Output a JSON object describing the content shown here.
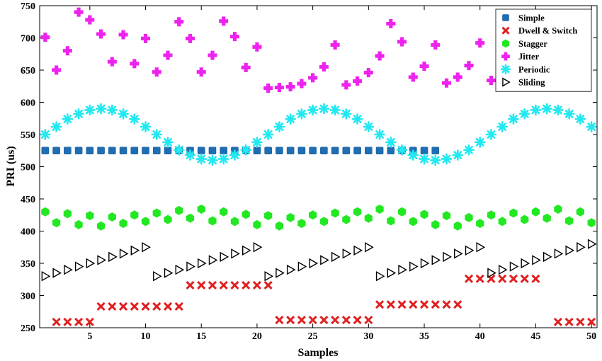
{
  "chart_data": {
    "type": "scatter",
    "xlabel": "Samples",
    "ylabel": "PRI (us)",
    "xlim": [
      0.5,
      50.5
    ],
    "ylim": [
      250,
      750
    ],
    "x_ticks": [
      5,
      10,
      15,
      20,
      25,
      30,
      35,
      40,
      45,
      50
    ],
    "y_ticks": [
      250,
      300,
      350,
      400,
      450,
      500,
      550,
      600,
      650,
      700,
      750
    ],
    "legend_position": "top-right",
    "series": [
      {
        "name": "Simple",
        "marker": "square",
        "color": "#1f6eb4",
        "x": [
          1,
          2,
          3,
          4,
          5,
          6,
          7,
          8,
          9,
          10,
          11,
          12,
          13,
          14,
          15,
          16,
          17,
          18,
          19,
          20,
          21,
          22,
          23,
          24,
          25,
          26,
          27,
          28,
          29,
          30,
          31,
          32,
          33,
          34,
          35,
          36
        ],
        "y": [
          525,
          525,
          525,
          525,
          525,
          525,
          525,
          525,
          525,
          525,
          525,
          525,
          525,
          525,
          525,
          525,
          525,
          525,
          525,
          525,
          525,
          525,
          525,
          525,
          525,
          525,
          525,
          525,
          525,
          525,
          525,
          525,
          525,
          525,
          525,
          525
        ]
      },
      {
        "name": "Dwell & Switch",
        "marker": "x",
        "color": "#e02020",
        "x": [
          2,
          3,
          4,
          5,
          6,
          7,
          8,
          9,
          10,
          11,
          12,
          13,
          14,
          15,
          16,
          17,
          18,
          19,
          20,
          21,
          22,
          23,
          24,
          25,
          26,
          27,
          28,
          29,
          30,
          31,
          32,
          33,
          34,
          35,
          36,
          37,
          38,
          39,
          40,
          41,
          42,
          43,
          44,
          45,
          47,
          48,
          49,
          50
        ],
        "y": [
          259,
          259,
          259,
          259,
          283,
          283,
          283,
          283,
          283,
          283,
          283,
          283,
          316,
          316,
          316,
          316,
          316,
          316,
          316,
          316,
          262,
          262,
          262,
          262,
          262,
          262,
          262,
          262,
          262,
          286,
          286,
          286,
          286,
          286,
          286,
          286,
          286,
          326,
          326,
          326,
          326,
          326,
          326,
          326,
          259,
          259,
          259,
          259
        ]
      },
      {
        "name": "Stagger",
        "marker": "hexagon",
        "color": "#22e822",
        "x": [
          1,
          2,
          3,
          4,
          5,
          6,
          7,
          8,
          9,
          10,
          11,
          12,
          13,
          14,
          15,
          16,
          17,
          18,
          19,
          20,
          21,
          22,
          23,
          24,
          25,
          26,
          27,
          28,
          29,
          30,
          31,
          32,
          33,
          34,
          35,
          36,
          37,
          38,
          39,
          40,
          41,
          42,
          43,
          44,
          45,
          46,
          47,
          48,
          49,
          50
        ],
        "y": [
          430,
          413,
          427,
          410,
          424,
          408,
          422,
          412,
          425,
          415,
          428,
          418,
          432,
          420,
          434,
          416,
          430,
          415,
          426,
          410,
          424,
          408,
          421,
          412,
          425,
          415,
          428,
          418,
          430,
          420,
          434,
          416,
          430,
          415,
          426,
          410,
          424,
          408,
          421,
          412,
          425,
          415,
          428,
          418,
          430,
          420,
          434,
          416,
          430,
          413
        ]
      },
      {
        "name": "Jitter",
        "marker": "plus",
        "color": "#ee22ee",
        "x": [
          1,
          2,
          3,
          4,
          5,
          6,
          7,
          8,
          9,
          10,
          11,
          12,
          13,
          14,
          15,
          16,
          17,
          18,
          19,
          20,
          21,
          22,
          23,
          24,
          25,
          26,
          27,
          28,
          29,
          30,
          31,
          32,
          33,
          34,
          35,
          36,
          37,
          38,
          39,
          40,
          41
        ],
        "y": [
          701,
          650,
          680,
          740,
          728,
          706,
          663,
          705,
          660,
          699,
          647,
          673,
          725,
          699,
          647,
          673,
          726,
          702,
          654,
          686,
          622,
          623,
          624,
          629,
          638,
          655,
          689,
          627,
          633,
          646,
          672,
          722,
          694,
          639,
          656,
          689,
          630,
          639,
          657,
          692,
          634
        ]
      },
      {
        "name": "Periodic",
        "marker": "asterisk",
        "color": "#22e8f0",
        "x": [
          1,
          2,
          3,
          4,
          5,
          6,
          7,
          8,
          9,
          10,
          11,
          12,
          13,
          14,
          15,
          16,
          17,
          18,
          19,
          20,
          21,
          22,
          23,
          24,
          25,
          26,
          27,
          28,
          29,
          30,
          31,
          32,
          33,
          34,
          35,
          36,
          37,
          38,
          39,
          40,
          41,
          42,
          43,
          44,
          45,
          46,
          47,
          48,
          49,
          50
        ],
        "y": [
          550,
          562,
          574,
          582,
          588,
          590,
          588,
          582,
          574,
          562,
          550,
          538,
          526,
          518,
          512,
          510,
          512,
          518,
          526,
          538,
          550,
          562,
          574,
          582,
          588,
          590,
          588,
          582,
          574,
          562,
          550,
          538,
          526,
          518,
          512,
          510,
          512,
          518,
          526,
          538,
          550,
          562,
          574,
          582,
          588,
          590,
          588,
          582,
          574,
          562
        ]
      },
      {
        "name": "Sliding",
        "marker": "triangle-right",
        "color": "#000000",
        "x": [
          1,
          2,
          3,
          4,
          5,
          6,
          7,
          8,
          9,
          10,
          11,
          12,
          13,
          14,
          15,
          16,
          17,
          18,
          19,
          20,
          21,
          22,
          23,
          24,
          25,
          26,
          27,
          28,
          29,
          30,
          31,
          32,
          33,
          34,
          35,
          36,
          37,
          38,
          39,
          40,
          41,
          42,
          43,
          44,
          45,
          46,
          47,
          48,
          49,
          50
        ],
        "y": [
          330,
          335,
          340,
          345,
          350,
          355,
          360,
          365,
          370,
          375,
          330,
          335,
          340,
          345,
          350,
          355,
          360,
          365,
          370,
          375,
          330,
          335,
          340,
          345,
          350,
          355,
          360,
          365,
          370,
          375,
          330,
          335,
          340,
          345,
          350,
          355,
          360,
          365,
          370,
          375,
          335,
          340,
          345,
          350,
          355,
          360,
          365,
          370,
          375,
          380
        ]
      }
    ]
  }
}
